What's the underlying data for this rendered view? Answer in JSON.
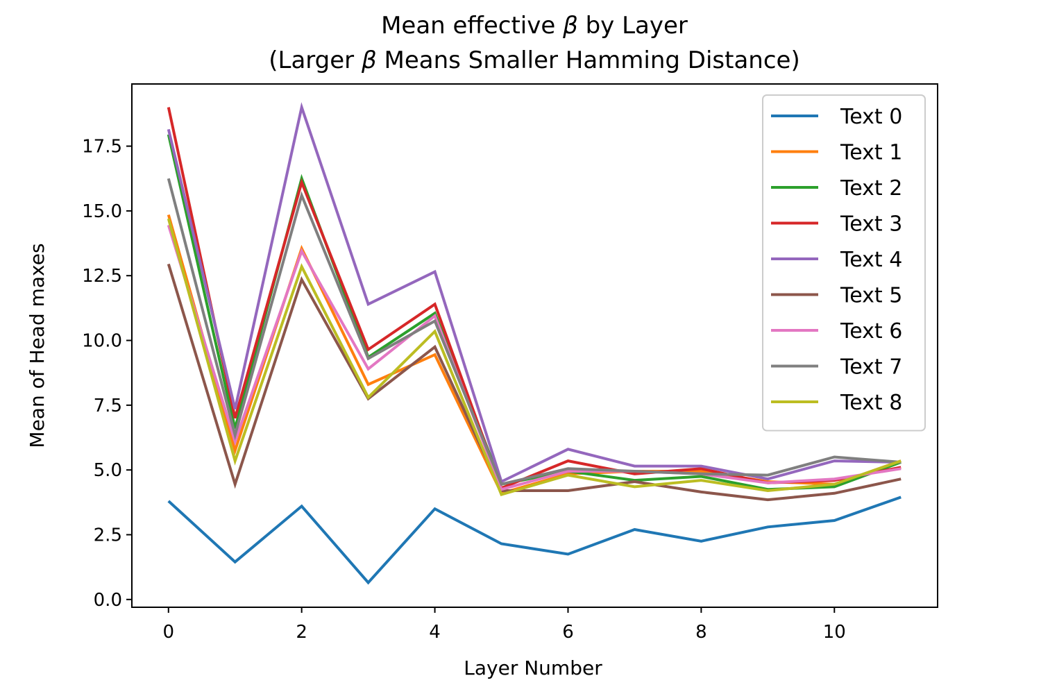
{
  "chart_data": {
    "type": "line",
    "title_line1_pre": "Mean effective ",
    "title_line1_post": " by Layer",
    "title_line2_pre": "(Larger ",
    "title_line2_post": " Means Smaller Hamming Distance)",
    "beta_symbol": "β",
    "xlabel": "Layer Number",
    "ylabel": "Mean of Head maxes",
    "xlim": [
      -0.55,
      11.55
    ],
    "ylim": [
      -0.3,
      19.9
    ],
    "xticks": [
      0,
      2,
      4,
      6,
      8,
      10
    ],
    "xtick_labels": [
      "0",
      "2",
      "4",
      "6",
      "8",
      "10"
    ],
    "yticks": [
      0,
      2.5,
      5,
      7.5,
      10,
      12.5,
      15,
      17.5
    ],
    "ytick_labels": [
      "0.0",
      "2.5",
      "5.0",
      "7.5",
      "10.0",
      "12.5",
      "15.0",
      "17.5"
    ],
    "legend_position": "top-right",
    "grid": false,
    "x": [
      0,
      1,
      2,
      3,
      4,
      5,
      6,
      7,
      8,
      9,
      10,
      11
    ],
    "series": [
      {
        "name": "Text 0",
        "color": "#1f77b4",
        "values": [
          3.8,
          1.45,
          3.6,
          0.65,
          3.5,
          2.15,
          1.75,
          2.7,
          2.25,
          2.8,
          3.05,
          3.95
        ]
      },
      {
        "name": "Text 1",
        "color": "#ff7f0e",
        "values": [
          14.85,
          5.75,
          13.55,
          8.3,
          9.45,
          4.1,
          4.85,
          4.95,
          4.95,
          4.55,
          4.45,
          5.35
        ]
      },
      {
        "name": "Text 2",
        "color": "#2ca02c",
        "values": [
          17.95,
          6.6,
          16.25,
          9.35,
          11.05,
          4.45,
          4.95,
          4.6,
          4.75,
          4.25,
          4.35,
          5.3
        ]
      },
      {
        "name": "Text 3",
        "color": "#d62728",
        "values": [
          19.0,
          7.0,
          16.1,
          9.65,
          11.4,
          4.3,
          5.35,
          4.85,
          5.05,
          4.5,
          4.6,
          5.1
        ]
      },
      {
        "name": "Text 4",
        "color": "#9467bd",
        "values": [
          18.15,
          7.35,
          19.0,
          11.4,
          12.65,
          4.55,
          5.8,
          5.15,
          5.15,
          4.65,
          5.35,
          5.3
        ]
      },
      {
        "name": "Text 5",
        "color": "#8c564b",
        "values": [
          12.95,
          4.45,
          12.35,
          7.75,
          9.75,
          4.2,
          4.2,
          4.55,
          4.15,
          3.85,
          4.1,
          4.65
        ]
      },
      {
        "name": "Text 6",
        "color": "#e377c2",
        "values": [
          14.45,
          6.1,
          13.45,
          8.9,
          10.95,
          4.25,
          4.95,
          4.95,
          4.85,
          4.5,
          4.65,
          5.05
        ]
      },
      {
        "name": "Text 7",
        "color": "#7f7f7f",
        "values": [
          16.25,
          6.35,
          15.6,
          9.3,
          10.75,
          4.45,
          5.05,
          4.95,
          4.85,
          4.8,
          5.5,
          5.3
        ]
      },
      {
        "name": "Text 8",
        "color": "#bcbd22",
        "values": [
          14.7,
          5.35,
          12.85,
          7.8,
          10.35,
          4.05,
          4.8,
          4.35,
          4.6,
          4.2,
          4.45,
          5.35
        ]
      }
    ]
  }
}
